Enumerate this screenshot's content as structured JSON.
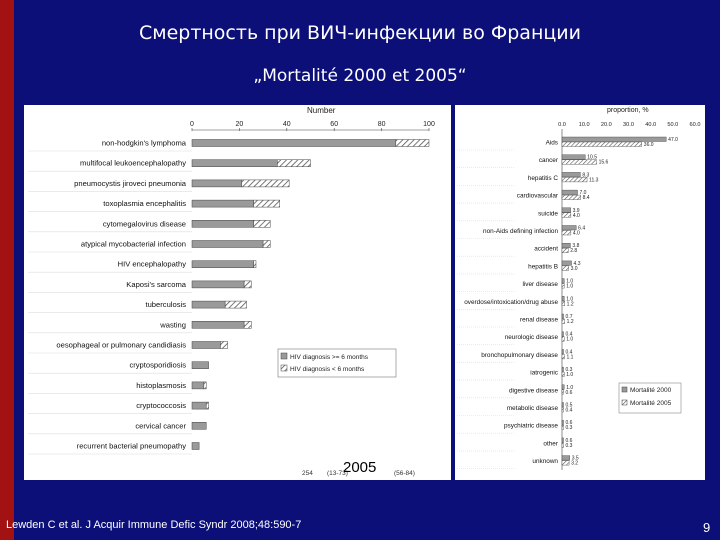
{
  "slide": {
    "title": "Смертность при ВИЧ-инфекции во Франции",
    "subtitle": "„Mortalité 2000 et 2005“",
    "citation": "Lewden C et al. J Acquir Immune Defic Syndr 2008;48:590-7",
    "page_number": "9",
    "year_label": "2005",
    "colors": {
      "background": "#0c0f78",
      "stripe": "#a31212",
      "bar": "#9a9a9a",
      "hatch": "#555555"
    }
  },
  "chart_data": [
    {
      "type": "bar",
      "orientation": "horizontal",
      "xlabel": "Number",
      "xlim": [
        0,
        100
      ],
      "xticks": [
        0,
        20,
        40,
        60,
        80,
        100
      ],
      "categories": [
        "non-hodgkin's lymphoma",
        "multifocal leukoencephalopathy",
        "pneumocystis jiroveci pneumonia",
        "toxoplasmia encephalitis",
        "cytomegalovirus disease",
        "atypical mycobacterial infection",
        "HIV encephalopathy",
        "Kaposi's sarcoma",
        "tuberculosis",
        "wasting",
        "oesophageal or pulmonary candidiasis",
        "cryptosporidiosis",
        "histoplasmosis",
        "cryptococcosis",
        "cervical cancer",
        "recurrent bacterial pneumopathy"
      ],
      "series": [
        {
          "name": "HIV diagnosis >= 6 months",
          "values": [
            86,
            36,
            21,
            26,
            26,
            30,
            26,
            22,
            14,
            22,
            12,
            7,
            5,
            6,
            6,
            3
          ]
        },
        {
          "name": "HIV diagnosis < 6 months",
          "values": [
            14,
            14,
            20,
            11,
            7,
            3,
            1,
            3,
            9,
            3,
            3,
            0,
            1,
            1,
            0,
            0
          ]
        }
      ],
      "legend": "bottom-right",
      "footer_ticks": [
        "254",
        "(13-73)",
        "(56-84)"
      ]
    },
    {
      "type": "bar",
      "orientation": "horizontal",
      "xlabel": "proportion, %",
      "xlim": [
        0,
        50
      ],
      "xticks": [
        "0.0",
        "10.0",
        "20.0",
        "30.0",
        "40.0",
        "50.0",
        "60.0"
      ],
      "categories": [
        "Aids",
        "cancer",
        "hepatitis C",
        "cardiovascular",
        "suicide",
        "non-Aids defining infection",
        "accident",
        "hepatitis B",
        "liver disease",
        "overdose/intoxication/drug abuse",
        "renal disease",
        "neurologic disease",
        "bronchopulmonary disease",
        "iatrogenic",
        "digestive disease",
        "metabolic disease",
        "psychiatric disease",
        "other",
        "unknown"
      ],
      "series": [
        {
          "name": "Mortalité 2000",
          "values": [
            47.0,
            10.5,
            8.3,
            7.0,
            3.9,
            6.4,
            3.8,
            4.3,
            1.0,
            1.0,
            0.7,
            0.4,
            0.4,
            0.3,
            1.0,
            0.5,
            0.6,
            0.6,
            3.5
          ]
        },
        {
          "name": "Mortalité 2005",
          "values": [
            36.0,
            15.6,
            11.3,
            8.4,
            4.0,
            4.0,
            2.8,
            3.0,
            1.0,
            1.2,
            1.2,
            1.0,
            1.1,
            1.0,
            0.6,
            0.4,
            0.3,
            0.3,
            3.2
          ]
        }
      ],
      "data_labels": [
        [
          "47.0",
          "36.0"
        ],
        [
          "10.5",
          "15.6"
        ],
        [
          "8.3",
          "11.3"
        ],
        [
          "7.0",
          "8.4"
        ],
        [
          "3.9",
          "4.0"
        ],
        [
          "6.4",
          "4.0"
        ],
        [
          "3.8",
          "2.8"
        ],
        [
          "4.3",
          "3.0"
        ],
        [
          "1.0",
          "1.0"
        ],
        [
          "1.0",
          "1.2"
        ],
        [
          "0.7",
          "1.2"
        ],
        [
          "0.4",
          "1.0"
        ],
        [
          "0.4",
          "1.1"
        ],
        [
          "0.3",
          "1.0"
        ],
        [
          "1.0",
          "0.6"
        ],
        [
          "0.5",
          "0.4"
        ],
        [
          "0.6",
          "0.3"
        ],
        [
          "0.6",
          "0.3"
        ],
        [
          "3.5",
          "3.2"
        ]
      ],
      "legend": "right"
    }
  ]
}
